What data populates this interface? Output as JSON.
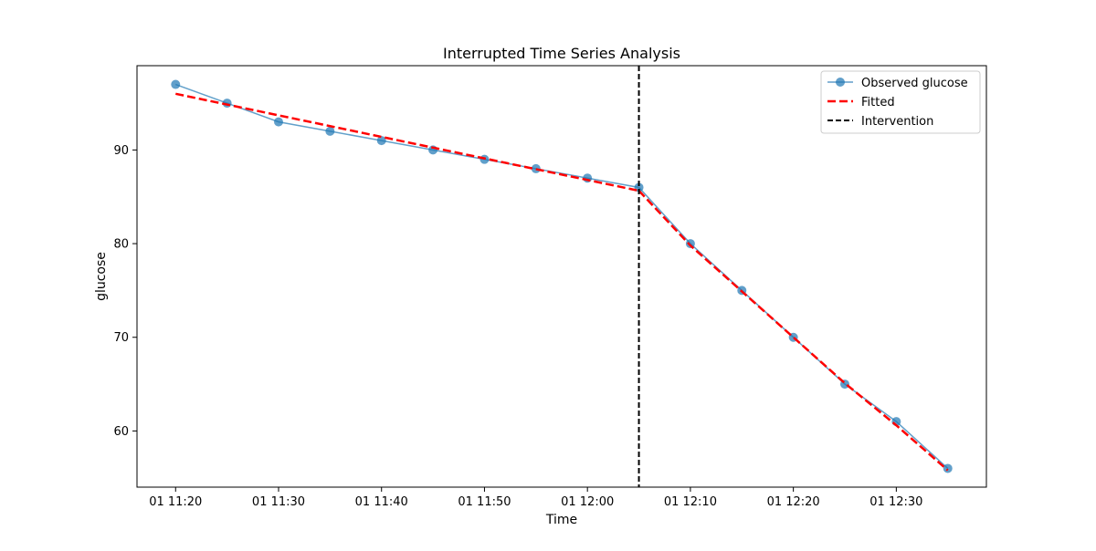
{
  "chart_data": {
    "type": "line",
    "title": "Interrupted Time Series Analysis",
    "xlabel": "Time",
    "ylabel": "glucose",
    "x": [
      "11:20",
      "11:25",
      "11:30",
      "11:35",
      "11:40",
      "11:45",
      "11:50",
      "11:55",
      "12:00",
      "12:05",
      "12:10",
      "12:15",
      "12:20",
      "12:25",
      "12:30",
      "12:35"
    ],
    "x_ticks": [
      "01 11:20",
      "01 11:30",
      "01 11:40",
      "01 11:50",
      "01 12:00",
      "01 12:10",
      "01 12:20",
      "01 12:30"
    ],
    "x_ticks_minutes": [
      0,
      10,
      20,
      30,
      40,
      50,
      60,
      70
    ],
    "x_minutes": [
      0,
      5,
      10,
      15,
      20,
      25,
      30,
      35,
      40,
      45,
      50,
      55,
      60,
      65,
      70,
      75
    ],
    "xlim_minutes": [
      -3.75,
      78.75
    ],
    "y_ticks": [
      60,
      70,
      80,
      90
    ],
    "ylim": [
      54,
      99
    ],
    "series": [
      {
        "name": "Observed glucose",
        "style": "solid-marker",
        "color": "#1f77b4",
        "values": [
          97,
          95,
          93,
          92,
          91,
          90,
          89,
          88,
          87,
          86,
          80,
          75,
          70,
          65,
          61,
          56
        ]
      },
      {
        "name": "Fitted",
        "style": "dashed",
        "color": "#ff0000",
        "values": [
          96.0,
          94.85,
          93.7,
          92.55,
          91.4,
          90.25,
          89.1,
          87.95,
          86.8,
          85.65,
          79.8,
          74.9,
          70.0,
          65.1,
          60.6,
          55.8
        ]
      }
    ],
    "intervention": {
      "name": "Intervention",
      "x": "12:05",
      "x_minutes": 45,
      "color": "#000000"
    },
    "legend_position": "top-right",
    "grid": false
  }
}
